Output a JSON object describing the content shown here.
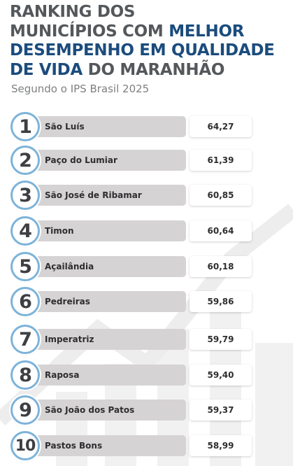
{
  "header": {
    "title_line1": "RANKING DOS",
    "title_line2_a": "MUNICÍPIOS COM ",
    "title_line2_b": "MELHOR",
    "title_line3": "DESEMPENHO EM QUALIDADE",
    "title_line4_a": "DE VIDA",
    "title_line4_b": " DO MARANHÃO",
    "subtitle": "Segundo o IPS Brasil 2025"
  },
  "colors": {
    "title_gray": "#55585b",
    "title_blue": "#1b4c7d",
    "circle_border": "#7db3d9",
    "name_bar": "#d6d3d4"
  },
  "ranking": [
    {
      "rank": "1",
      "name": "São Luís",
      "value": "64,27"
    },
    {
      "rank": "2",
      "name": "Paço do Lumiar",
      "value": "61,39"
    },
    {
      "rank": "3",
      "name": "São José de Ribamar",
      "value": "60,85"
    },
    {
      "rank": "4",
      "name": "Timon",
      "value": "60,64"
    },
    {
      "rank": "5",
      "name": "Açailândia",
      "value": "60,18"
    },
    {
      "rank": "6",
      "name": "Pedreiras",
      "value": "59,86"
    },
    {
      "rank": "7",
      "name": "Imperatriz",
      "value": "59,79"
    },
    {
      "rank": "8",
      "name": "Raposa",
      "value": "59,40"
    },
    {
      "rank": "9",
      "name": "São João dos Patos",
      "value": "59,37"
    },
    {
      "rank": "10",
      "name": "Pastos Bons",
      "value": "58,99"
    }
  ]
}
